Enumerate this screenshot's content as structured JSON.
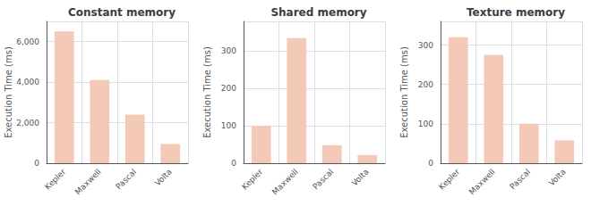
{
  "chart_data": [
    {
      "type": "bar",
      "title": "Constant memory",
      "ylabel": "Execution Time (ms)",
      "categories": [
        "Kepler",
        "Maxwell",
        "Pascal",
        "Volta"
      ],
      "values": [
        6500,
        4100,
        2400,
        950
      ],
      "color": "#f5c9b8",
      "ylim": [
        0,
        7000
      ],
      "yticks": [
        0,
        {
          "value": 2000,
          "label": "2,000"
        },
        {
          "value": 4000,
          "label": "4,000"
        },
        {
          "value": 6000,
          "label": "6,000"
        }
      ],
      "grid": true
    },
    {
      "type": "bar",
      "title": "Shared memory",
      "ylabel": "Execution Time (ms)",
      "categories": [
        "Kepler",
        "Maxwell",
        "Pascal",
        "Volta"
      ],
      "values": [
        100,
        335,
        48,
        22
      ],
      "color": "#f5c9b8",
      "ylim": [
        0,
        380
      ],
      "yticks": [
        0,
        100,
        200,
        300
      ],
      "grid": true
    },
    {
      "type": "bar",
      "title": "Texture memory",
      "ylabel": "Execution Time (ms)",
      "categories": [
        "Kepler",
        "Maxwell",
        "Pascal",
        "Volta"
      ],
      "values": [
        320,
        275,
        100,
        58
      ],
      "color": "#f5c9b8",
      "ylim": [
        0,
        360
      ],
      "yticks": [
        0,
        100,
        200,
        300
      ],
      "grid": true
    }
  ]
}
